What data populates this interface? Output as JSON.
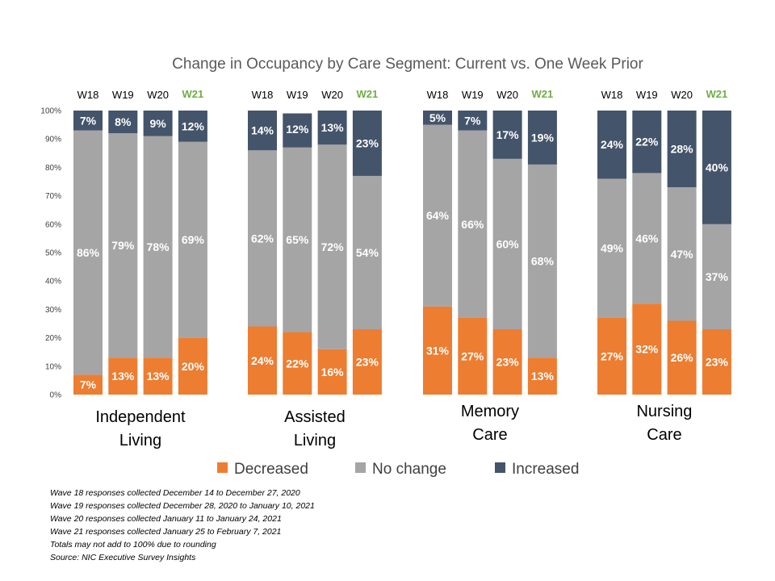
{
  "chart_data": {
    "type": "bar",
    "stacked": true,
    "title": "Change in Occupancy by Care Segment: Current vs. One Week Prior",
    "ylim": [
      0,
      100
    ],
    "yticks": [
      "0%",
      "10%",
      "20%",
      "30%",
      "40%",
      "50%",
      "60%",
      "70%",
      "80%",
      "90%",
      "100%"
    ],
    "series": [
      {
        "name": "Decreased",
        "color": "#ED7D31"
      },
      {
        "name": "No change",
        "color": "#A5A5A5"
      },
      {
        "name": "Increased",
        "color": "#44546A"
      }
    ],
    "highlight_wave_color": "#70AD47",
    "groups": [
      {
        "name_lines": [
          "Independent",
          "Living"
        ],
        "bars": [
          {
            "wave": "W18",
            "values": [
              7,
              86,
              7
            ],
            "labels": [
              "7%",
              "86%",
              "7%"
            ]
          },
          {
            "wave": "W19",
            "values": [
              13,
              79,
              8
            ],
            "labels": [
              "13%",
              "79%",
              "8%"
            ]
          },
          {
            "wave": "W20",
            "values": [
              13,
              78,
              9
            ],
            "labels": [
              "13%",
              "78%",
              "9%"
            ]
          },
          {
            "wave": "W21",
            "values": [
              20,
              69,
              12
            ],
            "labels": [
              "20%",
              "69%",
              "12%"
            ]
          }
        ]
      },
      {
        "name_lines": [
          "Assisted",
          "Living"
        ],
        "bars": [
          {
            "wave": "W18",
            "values": [
              24,
              62,
              14
            ],
            "labels": [
              "24%",
              "62%",
              "14%"
            ]
          },
          {
            "wave": "W19",
            "values": [
              22,
              65,
              12
            ],
            "labels": [
              "22%",
              "65%",
              "12%"
            ]
          },
          {
            "wave": "W20",
            "values": [
              16,
              72,
              13
            ],
            "labels": [
              "16%",
              "72%",
              "13%"
            ]
          },
          {
            "wave": "W21",
            "values": [
              23,
              54,
              23
            ],
            "labels": [
              "23%",
              "54%",
              "23%"
            ]
          }
        ]
      },
      {
        "name_lines": [
          "Memory",
          "Care"
        ],
        "bars": [
          {
            "wave": "W18",
            "values": [
              31,
              64,
              5
            ],
            "labels": [
              "31%",
              "64%",
              "5%"
            ]
          },
          {
            "wave": "W19",
            "values": [
              27,
              66,
              7
            ],
            "labels": [
              "27%",
              "66%",
              "7%"
            ]
          },
          {
            "wave": "W20",
            "values": [
              23,
              60,
              17
            ],
            "labels": [
              "23%",
              "60%",
              "17%"
            ]
          },
          {
            "wave": "W21",
            "values": [
              13,
              68,
              19
            ],
            "labels": [
              "13%",
              "68%",
              "19%"
            ]
          }
        ]
      },
      {
        "name_lines": [
          "Nursing",
          "Care"
        ],
        "bars": [
          {
            "wave": "W18",
            "values": [
              27,
              49,
              24
            ],
            "labels": [
              "27%",
              "49%",
              "24%"
            ]
          },
          {
            "wave": "W19",
            "values": [
              32,
              46,
              22
            ],
            "labels": [
              "32%",
              "46%",
              "22%"
            ]
          },
          {
            "wave": "W20",
            "values": [
              26,
              47,
              28
            ],
            "labels": [
              "26%",
              "47%",
              "28%"
            ]
          },
          {
            "wave": "W21",
            "values": [
              23,
              37,
              40
            ],
            "labels": [
              "23%",
              "37%",
              "40%"
            ]
          }
        ]
      }
    ],
    "legend_position": "bottom"
  },
  "footnotes": [
    "Wave 18 responses collected  December 14 to December  27, 2020",
    "Wave 19 responses collected  December 28, 2020 to January 10, 2021",
    "Wave 20 responses collected  January 11 to January 24, 2021",
    "Wave 21 responses collected  January 25 to February 7, 2021",
    "Totals may not add to 100% due to rounding",
    "Source: NIC Executive Survey Insights"
  ]
}
